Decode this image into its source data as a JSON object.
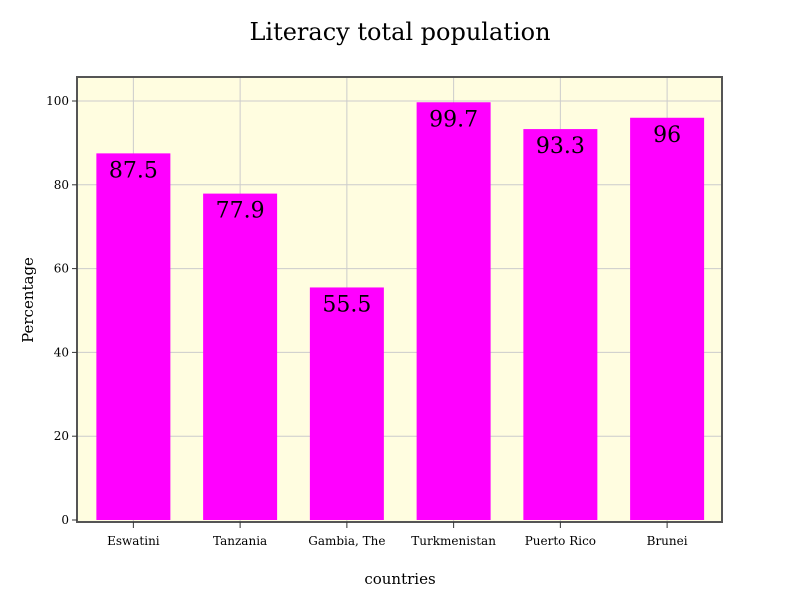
{
  "chart_data": {
    "type": "bar",
    "title": "Literacy total population",
    "xlabel": "countries",
    "ylabel": "Percentage",
    "categories": [
      "Eswatini",
      "Tanzania",
      "Gambia, The",
      "Turkmenistan",
      "Puerto Rico",
      "Brunei"
    ],
    "values": [
      87.5,
      77.9,
      55.5,
      99.7,
      93.3,
      96
    ],
    "ylim": [
      0,
      100
    ],
    "yticks": [
      0,
      20,
      40,
      60,
      80,
      100
    ],
    "grid": true,
    "data_labels": true,
    "colors": {
      "bar": "#ff00ff",
      "plot_background": "#fffde0",
      "grid": "#cccccc",
      "frame": "#555555"
    }
  }
}
